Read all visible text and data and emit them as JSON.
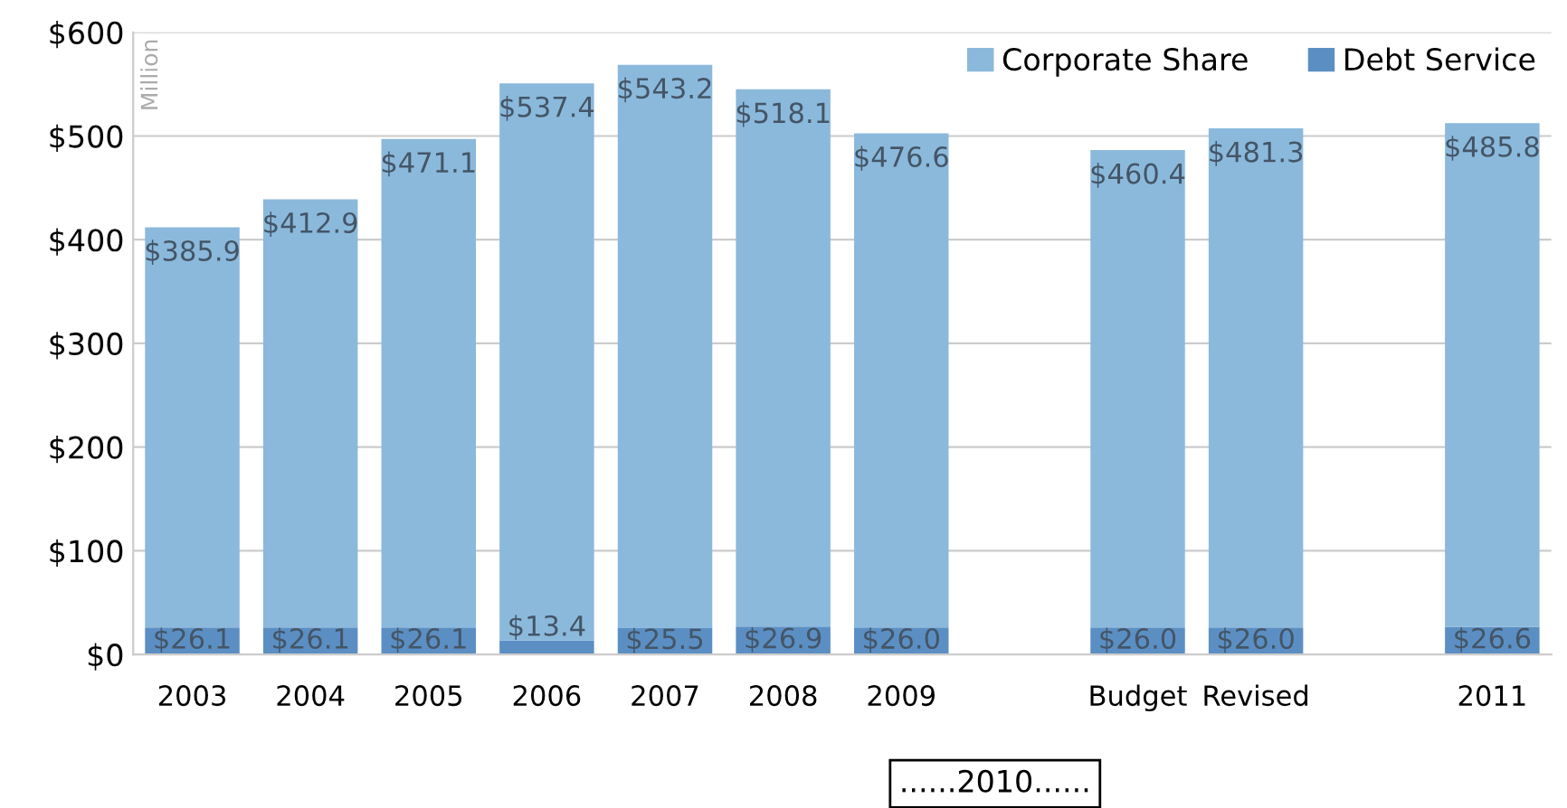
{
  "chart_data": {
    "type": "bar",
    "stacked": true,
    "ylabel": "Million",
    "categories": [
      "2003",
      "2004",
      "2005",
      "2006",
      "2007",
      "2008",
      "2009",
      null,
      "Budget",
      "Revised",
      null,
      "2011"
    ],
    "series": [
      {
        "name": "Debt Service",
        "color": "#5b8fc4",
        "values": [
          26.1,
          26.1,
          26.1,
          13.4,
          25.5,
          26.9,
          26.0,
          null,
          26.0,
          26.0,
          null,
          26.6
        ],
        "value_labels": [
          "$26.1",
          "$26.1",
          "$26.1",
          "$13.4",
          "$25.5",
          "$26.9",
          "$26.0",
          null,
          "$26.0",
          "$26.0",
          null,
          "$26.6"
        ]
      },
      {
        "name": "Corporate Share",
        "color": "#8bb9dc",
        "values": [
          385.9,
          412.9,
          471.1,
          537.4,
          543.2,
          518.1,
          476.6,
          null,
          460.4,
          481.3,
          null,
          485.8
        ],
        "value_labels": [
          "$385.9",
          "$412.9",
          "$471.1",
          "$537.4",
          "$543.2",
          "$518.1",
          "$476.6",
          null,
          "$460.4",
          "$481.3",
          null,
          "$485.8"
        ]
      }
    ],
    "ylim": [
      0,
      600
    ],
    "yticks": [
      {
        "value": 0,
        "label": "$0"
      },
      {
        "value": 100,
        "label": "$100"
      },
      {
        "value": 200,
        "label": "$200"
      },
      {
        "value": 300,
        "label": "$300"
      },
      {
        "value": 400,
        "label": "$400"
      },
      {
        "value": 500,
        "label": "$500"
      },
      {
        "value": 600,
        "label": "$600"
      }
    ],
    "grid": "y",
    "legend": "top right",
    "annotations": [
      "......2010......"
    ]
  }
}
